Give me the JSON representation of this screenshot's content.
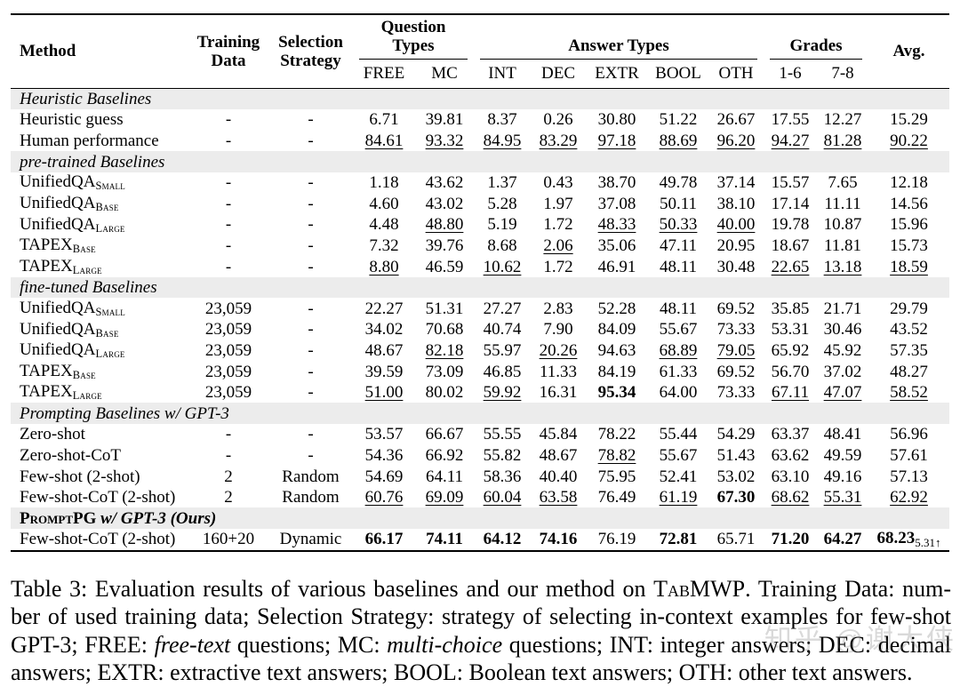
{
  "table": {
    "header": {
      "method": "Method",
      "training_data": "Training Data",
      "selection_strategy": "Selection Strategy",
      "avg": "Avg.",
      "groups": [
        {
          "label": "Question Types",
          "cols": [
            "FREE",
            "MC"
          ]
        },
        {
          "label": "Answer Types",
          "cols": [
            "INT",
            "DEC",
            "EXTR",
            "BOOL",
            "OTH"
          ]
        },
        {
          "label": "Grades",
          "cols": [
            "1-6",
            "7-8"
          ]
        }
      ]
    },
    "sections": [
      {
        "title": [
          {
            "t": "Heuristic Baselines",
            "i": true
          }
        ],
        "rows": [
          {
            "method": "Heuristic guess",
            "training": "-",
            "strategy": "-",
            "values": [
              {
                "v": "6.71"
              },
              {
                "v": "39.81"
              },
              {
                "v": "8.37"
              },
              {
                "v": "0.26"
              },
              {
                "v": "30.80"
              },
              {
                "v": "51.22"
              },
              {
                "v": "26.67"
              },
              {
                "v": "17.55"
              },
              {
                "v": "12.27"
              },
              {
                "v": "15.29"
              }
            ]
          },
          {
            "method": "Human performance",
            "training": "-",
            "strategy": "-",
            "values": [
              {
                "v": "84.61",
                "u": true
              },
              {
                "v": "93.32",
                "u": true
              },
              {
                "v": "84.95",
                "u": true
              },
              {
                "v": "83.29",
                "u": true
              },
              {
                "v": "97.18",
                "u": true
              },
              {
                "v": "88.69",
                "u": true
              },
              {
                "v": "96.20",
                "u": true
              },
              {
                "v": "94.27",
                "u": true
              },
              {
                "v": "81.28",
                "u": true
              },
              {
                "v": "90.22",
                "u": true
              }
            ]
          }
        ]
      },
      {
        "title": [
          {
            "t": "pre-trained Baselines",
            "i": true
          }
        ],
        "rows": [
          {
            "method": "UnifiedQA",
            "msub": "Small",
            "training": "-",
            "strategy": "-",
            "values": [
              {
                "v": "1.18"
              },
              {
                "v": "43.62"
              },
              {
                "v": "1.37"
              },
              {
                "v": "0.43"
              },
              {
                "v": "38.70"
              },
              {
                "v": "49.78"
              },
              {
                "v": "37.14"
              },
              {
                "v": "15.57"
              },
              {
                "v": "7.65"
              },
              {
                "v": "12.18"
              }
            ]
          },
          {
            "method": "UnifiedQA",
            "msub": "Base",
            "training": "-",
            "strategy": "-",
            "values": [
              {
                "v": "4.60"
              },
              {
                "v": "43.02"
              },
              {
                "v": "5.28"
              },
              {
                "v": "1.97"
              },
              {
                "v": "37.08"
              },
              {
                "v": "50.11"
              },
              {
                "v": "38.10"
              },
              {
                "v": "17.14"
              },
              {
                "v": "11.11"
              },
              {
                "v": "14.56"
              }
            ]
          },
          {
            "method": "UnifiedQA",
            "msub": "Large",
            "training": "-",
            "strategy": "-",
            "values": [
              {
                "v": "4.48"
              },
              {
                "v": "48.80",
                "u": true
              },
              {
                "v": "5.19"
              },
              {
                "v": "1.72"
              },
              {
                "v": "48.33",
                "u": true
              },
              {
                "v": "50.33",
                "u": true
              },
              {
                "v": "40.00",
                "u": true
              },
              {
                "v": "19.78"
              },
              {
                "v": "10.87"
              },
              {
                "v": "15.96"
              }
            ]
          },
          {
            "method": "TAPEX",
            "msub": "Base",
            "training": "-",
            "strategy": "-",
            "values": [
              {
                "v": "7.32"
              },
              {
                "v": "39.76"
              },
              {
                "v": "8.68"
              },
              {
                "v": "2.06",
                "u": true
              },
              {
                "v": "35.06"
              },
              {
                "v": "47.11"
              },
              {
                "v": "20.95"
              },
              {
                "v": "18.67"
              },
              {
                "v": "11.81"
              },
              {
                "v": "15.73"
              }
            ]
          },
          {
            "method": "TAPEX",
            "msub": "Large",
            "training": "-",
            "strategy": "-",
            "values": [
              {
                "v": "8.80",
                "u": true
              },
              {
                "v": "46.59"
              },
              {
                "v": "10.62",
                "u": true
              },
              {
                "v": "1.72"
              },
              {
                "v": "46.91"
              },
              {
                "v": "48.11"
              },
              {
                "v": "30.48"
              },
              {
                "v": "22.65",
                "u": true
              },
              {
                "v": "13.18",
                "u": true
              },
              {
                "v": "18.59",
                "u": true
              }
            ]
          }
        ]
      },
      {
        "title": [
          {
            "t": "fine-tuned Baselines",
            "i": true
          }
        ],
        "rows": [
          {
            "method": "UnifiedQA",
            "msub": "Small",
            "training": "23,059",
            "strategy": "-",
            "values": [
              {
                "v": "22.27"
              },
              {
                "v": "51.31"
              },
              {
                "v": "27.27"
              },
              {
                "v": "2.83"
              },
              {
                "v": "52.28"
              },
              {
                "v": "48.11"
              },
              {
                "v": "69.52"
              },
              {
                "v": "35.85"
              },
              {
                "v": "21.71"
              },
              {
                "v": "29.79"
              }
            ]
          },
          {
            "method": "UnifiedQA",
            "msub": "Base",
            "training": "23,059",
            "strategy": "-",
            "values": [
              {
                "v": "34.02"
              },
              {
                "v": "70.68"
              },
              {
                "v": "40.74"
              },
              {
                "v": "7.90"
              },
              {
                "v": "84.09"
              },
              {
                "v": "55.67"
              },
              {
                "v": "73.33"
              },
              {
                "v": "53.31"
              },
              {
                "v": "30.46"
              },
              {
                "v": "43.52"
              }
            ]
          },
          {
            "method": "UnifiedQA",
            "msub": "Large",
            "training": "23,059",
            "strategy": "-",
            "values": [
              {
                "v": "48.67"
              },
              {
                "v": "82.18",
                "u": true
              },
              {
                "v": "55.97"
              },
              {
                "v": "20.26",
                "u": true
              },
              {
                "v": "94.63"
              },
              {
                "v": "68.89",
                "u": true
              },
              {
                "v": "79.05",
                "u": true
              },
              {
                "v": "65.92"
              },
              {
                "v": "45.92"
              },
              {
                "v": "57.35"
              }
            ]
          },
          {
            "method": "TAPEX",
            "msub": "Base",
            "training": "23,059",
            "strategy": "-",
            "values": [
              {
                "v": "39.59"
              },
              {
                "v": "73.09"
              },
              {
                "v": "46.85"
              },
              {
                "v": "11.33"
              },
              {
                "v": "84.19"
              },
              {
                "v": "61.33"
              },
              {
                "v": "69.52"
              },
              {
                "v": "56.70"
              },
              {
                "v": "37.02"
              },
              {
                "v": "48.27"
              }
            ]
          },
          {
            "method": "TAPEX",
            "msub": "Large",
            "training": "23,059",
            "strategy": "-",
            "values": [
              {
                "v": "51.00",
                "u": true
              },
              {
                "v": "80.02"
              },
              {
                "v": "59.92",
                "u": true
              },
              {
                "v": "16.31"
              },
              {
                "v": "95.34",
                "b": true
              },
              {
                "v": "64.00"
              },
              {
                "v": "73.33"
              },
              {
                "v": "67.11",
                "u": true
              },
              {
                "v": "47.07",
                "u": true
              },
              {
                "v": "58.52",
                "u": true
              }
            ]
          }
        ]
      },
      {
        "title": [
          {
            "t": "Prompting Baselines w/ GPT-3",
            "i": true
          }
        ],
        "rows": [
          {
            "method": "Zero-shot",
            "training": "-",
            "strategy": "-",
            "values": [
              {
                "v": "53.57"
              },
              {
                "v": "66.67"
              },
              {
                "v": "55.55"
              },
              {
                "v": "45.84"
              },
              {
                "v": "78.22"
              },
              {
                "v": "55.44"
              },
              {
                "v": "54.29"
              },
              {
                "v": "63.37"
              },
              {
                "v": "48.41"
              },
              {
                "v": "56.96"
              }
            ]
          },
          {
            "method": "Zero-shot-CoT",
            "training": "-",
            "strategy": "-",
            "values": [
              {
                "v": "54.36"
              },
              {
                "v": "66.92"
              },
              {
                "v": "55.82"
              },
              {
                "v": "48.67"
              },
              {
                "v": "78.82",
                "u": true
              },
              {
                "v": "55.67"
              },
              {
                "v": "51.43"
              },
              {
                "v": "63.62"
              },
              {
                "v": "49.59"
              },
              {
                "v": "57.61"
              }
            ]
          },
          {
            "method": "Few-shot (2-shot)",
            "training": "2",
            "strategy": "Random",
            "values": [
              {
                "v": "54.69"
              },
              {
                "v": "64.11"
              },
              {
                "v": "58.36"
              },
              {
                "v": "40.40"
              },
              {
                "v": "75.95"
              },
              {
                "v": "52.41"
              },
              {
                "v": "53.02"
              },
              {
                "v": "63.10"
              },
              {
                "v": "49.16"
              },
              {
                "v": "57.13"
              }
            ]
          },
          {
            "method": "Few-shot-CoT (2-shot)",
            "training": "2",
            "strategy": "Random",
            "values": [
              {
                "v": "60.76",
                "u": true
              },
              {
                "v": "69.09",
                "u": true
              },
              {
                "v": "60.04",
                "u": true
              },
              {
                "v": "63.58",
                "u": true
              },
              {
                "v": "76.49"
              },
              {
                "v": "61.19",
                "u": true
              },
              {
                "v": "67.30",
                "b": true
              },
              {
                "v": "68.62",
                "u": true
              },
              {
                "v": "55.31",
                "u": true
              },
              {
                "v": "62.92",
                "u": true
              }
            ]
          }
        ]
      },
      {
        "title": [
          {
            "t": "PromptPG",
            "sc": true,
            "b": true
          },
          {
            "t": " w/ GPT-3 (Ours)",
            "b": true,
            "i": true
          }
        ],
        "rows": [
          {
            "method": "Few-shot-CoT (2-shot)",
            "training": "160+20",
            "strategy": "Dynamic",
            "values": [
              {
                "v": "66.17",
                "b": true
              },
              {
                "v": "74.11",
                "b": true
              },
              {
                "v": "64.12",
                "b": true
              },
              {
                "v": "74.16",
                "b": true
              },
              {
                "v": "76.19"
              },
              {
                "v": "72.81",
                "b": true
              },
              {
                "v": "65.71"
              },
              {
                "v": "71.20",
                "b": true
              },
              {
                "v": "64.27",
                "b": true
              },
              {
                "v": "68.23",
                "b": true,
                "sub": "5.31↑"
              }
            ]
          }
        ]
      }
    ]
  },
  "caption": {
    "lines": [
      [
        {
          "t": "Table 3: Evaluation results of various baselines and our method on "
        },
        {
          "t": "TabMWP",
          "sc": true
        },
        {
          "t": ". Training Data: num-"
        }
      ],
      [
        {
          "t": "ber of used training data; Selection Strategy: strategy of selecting in-context examples for few-shot"
        }
      ],
      [
        {
          "t": "GPT-3; FREE: "
        },
        {
          "t": "free-text",
          "i": true
        },
        {
          "t": " questions; MC: "
        },
        {
          "t": "multi-choice",
          "i": true
        },
        {
          "t": " questions; INT: integer answers; DEC: decimal"
        }
      ],
      [
        {
          "t": "answers; EXTR: extractive text answers; BOOL: Boolean text answers; OTH: other text answers."
        }
      ]
    ]
  },
  "watermark": "知乎 @谢大侠"
}
